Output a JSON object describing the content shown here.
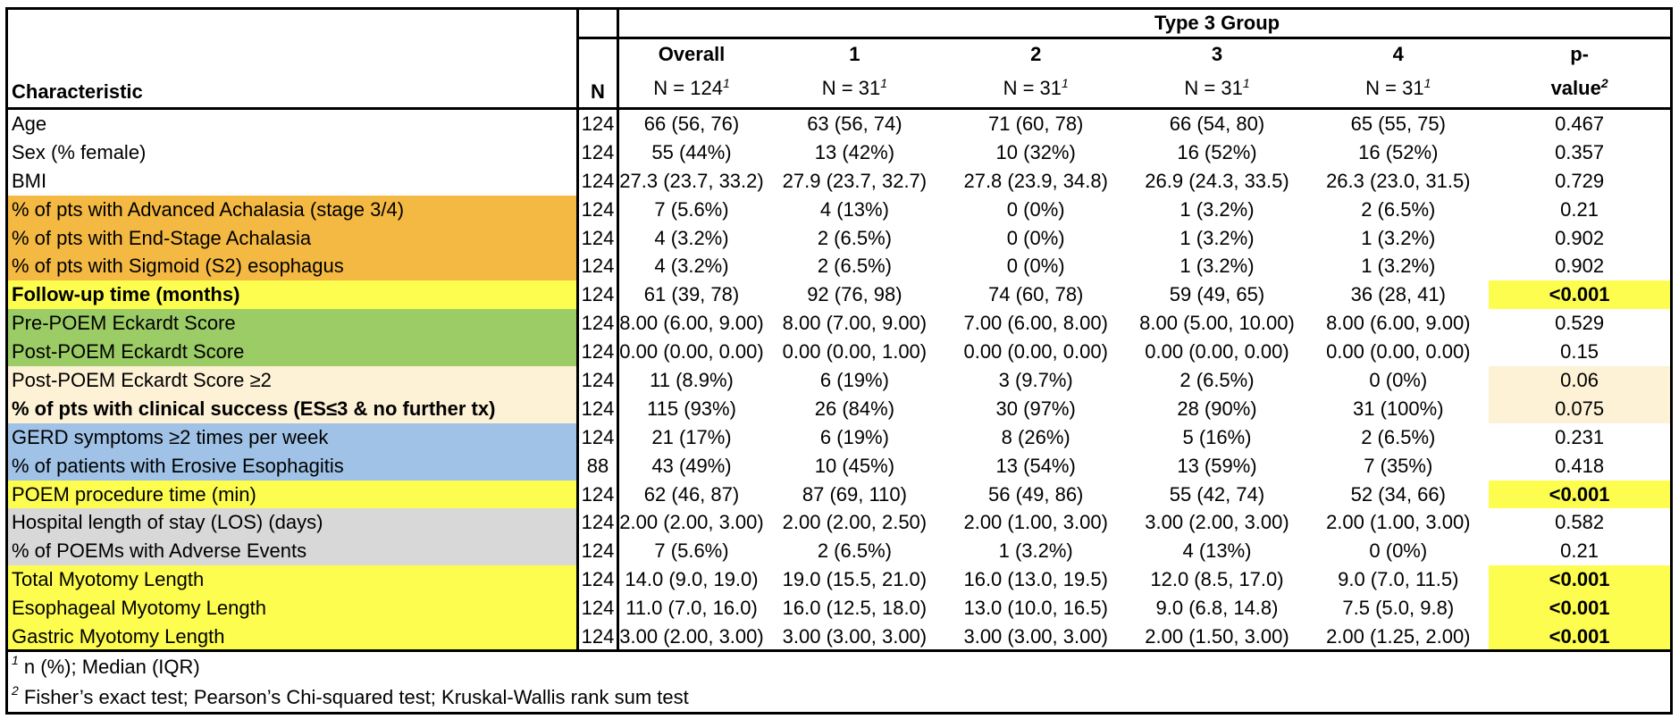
{
  "table": {
    "group_header": "Type 3 Group",
    "header_row1": {
      "overall": "Overall",
      "g1": "1",
      "g2": "2",
      "g3": "3",
      "g4": "4",
      "p": "p-"
    },
    "header_row2": {
      "characteristic": "Characteristic",
      "n": "N",
      "overall": "N = 124",
      "g1": "N = 31",
      "g2": "N = 31",
      "g3": "N = 31",
      "g4": "N = 31",
      "p": "value",
      "sup1": "1",
      "sup2": "2"
    },
    "rows": [
      {
        "label": "Age",
        "n": "124",
        "overall": "66 (56, 76)",
        "g1": "63 (56, 74)",
        "g2": "71 (60, 78)",
        "g3": "66 (54, 80)",
        "g4": "65 (55, 75)",
        "p": "0.467"
      },
      {
        "label": "Sex (% female)",
        "n": "124",
        "overall": "55 (44%)",
        "g1": "13 (42%)",
        "g2": "10 (32%)",
        "g3": "16 (52%)",
        "g4": "16 (52%)",
        "p": "0.357"
      },
      {
        "label": "BMI",
        "n": "124",
        "overall": "27.3 (23.7, 33.2)",
        "g1": "27.9 (23.7, 32.7)",
        "g2": "27.8 (23.9, 34.8)",
        "g3": "26.9 (24.3, 33.5)",
        "g4": "26.3 (23.0, 31.5)",
        "p": "0.729"
      },
      {
        "label": "% of pts with Advanced Achalasia (stage 3/4)",
        "n": "124",
        "overall": "7 (5.6%)",
        "g1": "4 (13%)",
        "g2": "0 (0%)",
        "g3": "1 (3.2%)",
        "g4": "2 (6.5%)",
        "p": "0.21"
      },
      {
        "label": "% of pts with End-Stage Achalasia",
        "n": "124",
        "overall": "4 (3.2%)",
        "g1": "2 (6.5%)",
        "g2": "0 (0%)",
        "g3": "1 (3.2%)",
        "g4": "1 (3.2%)",
        "p": "0.902"
      },
      {
        "label": "% of pts with Sigmoid (S2) esophagus",
        "n": "124",
        "overall": "4 (3.2%)",
        "g1": "2 (6.5%)",
        "g2": "0 (0%)",
        "g3": "1 (3.2%)",
        "g4": "1 (3.2%)",
        "p": "0.902"
      },
      {
        "label": "Follow-up time (months)",
        "n": "124",
        "overall": "61 (39, 78)",
        "g1": "92 (76, 98)",
        "g2": "74 (60, 78)",
        "g3": "59 (49, 65)",
        "g4": "36 (28, 41)",
        "p": "<0.001"
      },
      {
        "label": "Pre-POEM Eckardt Score",
        "n": "124",
        "overall": "8.00 (6.00, 9.00)",
        "g1": "8.00 (7.00, 9.00)",
        "g2": "7.00 (6.00, 8.00)",
        "g3": "8.00 (5.00, 10.00)",
        "g4": "8.00 (6.00, 9.00)",
        "p": "0.529"
      },
      {
        "label": "Post-POEM Eckardt Score",
        "n": "124",
        "overall": "0.00 (0.00, 0.00)",
        "g1": "0.00 (0.00, 1.00)",
        "g2": "0.00 (0.00, 0.00)",
        "g3": "0.00 (0.00, 0.00)",
        "g4": "0.00 (0.00, 0.00)",
        "p": "0.15"
      },
      {
        "label": "Post-POEM Eckardt Score ≥2",
        "n": "124",
        "overall": "11 (8.9%)",
        "g1": "6 (19%)",
        "g2": "3 (9.7%)",
        "g3": "2 (6.5%)",
        "g4": "0 (0%)",
        "p": "0.06"
      },
      {
        "label": "% of pts with clinical success (ES≤3 & no further tx)",
        "n": "124",
        "overall": "115 (93%)",
        "g1": "26 (84%)",
        "g2": "30 (97%)",
        "g3": "28 (90%)",
        "g4": "31 (100%)",
        "p": "0.075"
      },
      {
        "label": "GERD symptoms ≥2 times per week",
        "n": "124",
        "overall": "21 (17%)",
        "g1": "6 (19%)",
        "g2": "8 (26%)",
        "g3": "5 (16%)",
        "g4": "2 (6.5%)",
        "p": "0.231"
      },
      {
        "label": "% of patients with Erosive Esophagitis",
        "n": "88",
        "overall": "43 (49%)",
        "g1": "10 (45%)",
        "g2": "13 (54%)",
        "g3": "13 (59%)",
        "g4": "7 (35%)",
        "p": "0.418"
      },
      {
        "label": "POEM procedure time (min)",
        "n": "124",
        "overall": "62 (46, 87)",
        "g1": "87 (69, 110)",
        "g2": "56 (49, 86)",
        "g3": "55 (42, 74)",
        "g4": "52 (34, 66)",
        "p": "<0.001"
      },
      {
        "label": "Hospital length of stay (LOS) (days)",
        "n": "124",
        "overall": "2.00 (2.00, 3.00)",
        "g1": "2.00 (2.00, 2.50)",
        "g2": "2.00 (1.00, 3.00)",
        "g3": "3.00 (2.00, 3.00)",
        "g4": "2.00 (1.00, 3.00)",
        "p": "0.582"
      },
      {
        "label": "% of POEMs with Adverse Events",
        "n": "124",
        "overall": "7 (5.6%)",
        "g1": "2 (6.5%)",
        "g2": "1 (3.2%)",
        "g3": "4 (13%)",
        "g4": "0 (0%)",
        "p": "0.21"
      },
      {
        "label": "Total Myotomy Length",
        "n": "124",
        "overall": "14.0 (9.0, 19.0)",
        "g1": "19.0 (15.5, 21.0)",
        "g2": "16.0 (13.0, 19.5)",
        "g3": "12.0 (8.5, 17.0)",
        "g4": "9.0 (7.0, 11.5)",
        "p": "<0.001"
      },
      {
        "label": "Esophageal Myotomy Length",
        "n": "124",
        "overall": "11.0 (7.0, 16.0)",
        "g1": "16.0 (12.5, 18.0)",
        "g2": "13.0 (10.0, 16.5)",
        "g3": "9.0 (6.8, 14.8)",
        "g4": "7.5 (5.0, 9.8)",
        "p": "<0.001"
      },
      {
        "label": "Gastric Myotomy Length",
        "n": "124",
        "overall": "3.00 (2.00, 3.00)",
        "g1": "3.00 (3.00, 3.00)",
        "g2": "3.00 (3.00, 3.00)",
        "g3": "2.00 (1.50, 3.00)",
        "g4": "2.00 (1.25, 2.00)",
        "p": "<0.001"
      }
    ],
    "footnotes": [
      {
        "sup": "1",
        "text": "n (%); Median (IQR)"
      },
      {
        "sup": "2",
        "text": "Fisher’s exact test; Pearson’s Chi-squared test; Kruskal-Wallis rank sum test"
      }
    ]
  },
  "colors": {
    "orange": "#f4b942",
    "yellow": "#fdfd50",
    "green": "#9ccc65",
    "cream": "#fdf1d6",
    "blue": "#9fc2e6",
    "gray": "#d8d8d8",
    "white": "#ffffff"
  }
}
